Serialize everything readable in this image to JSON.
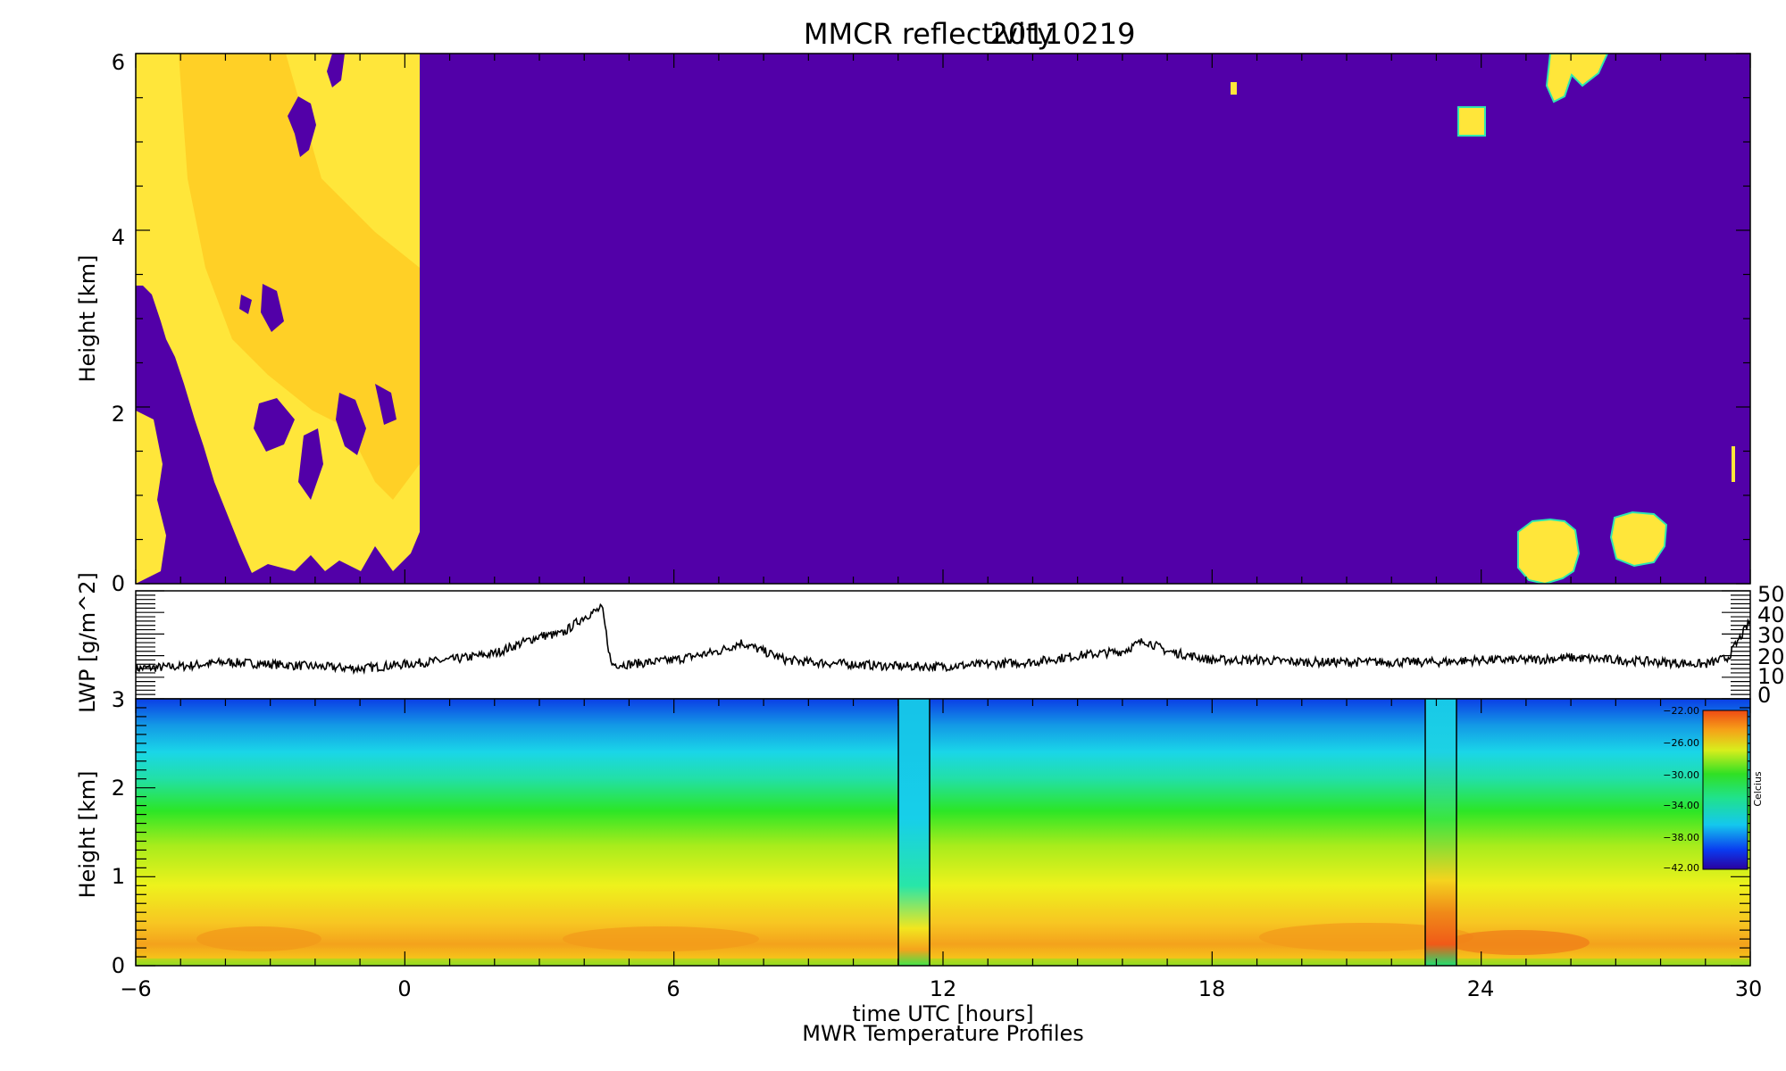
{
  "chart_data": [
    {
      "type": "heatmap",
      "title": "MMCR reflectivity",
      "date": "20110219",
      "ylabel": "Height [km]",
      "xlim": [
        -6,
        30
      ],
      "ylim": [
        0,
        6
      ],
      "yticks": [
        "0",
        "2",
        "4",
        "6"
      ],
      "colors": {
        "background": "#5200a8",
        "echo": "#ffe83a",
        "echo_core": "#ffc21e",
        "edge": "#2ee6b0"
      },
      "echo_regions_hours_km": [
        {
          "x0": -6.0,
          "x1": 0.4,
          "y0": 0.0,
          "y1": 6.0
        },
        {
          "x0": 23.4,
          "x1": 24.0,
          "y0": 5.1,
          "y1": 5.4
        },
        {
          "x0": 19.3,
          "x1": 19.4,
          "y0": 5.6,
          "y1": 5.7
        },
        {
          "x0": 24.7,
          "x1": 26.0,
          "y0": 0.0,
          "y1": 0.7
        },
        {
          "x0": 26.8,
          "x1": 28.0,
          "y0": 0.4,
          "y1": 0.8
        },
        {
          "x0": 26.0,
          "x1": 27.3,
          "y0": 5.6,
          "y1": 6.0
        },
        {
          "x0": 29.8,
          "x1": 29.9,
          "y0": 1.2,
          "y1": 1.6
        }
      ]
    },
    {
      "type": "line",
      "ylabel": "LWP [g/m^2]",
      "xlim": [
        -6,
        30
      ],
      "ylim": [
        0,
        50
      ],
      "yticks": [
        "0",
        "10",
        "20",
        "30",
        "40",
        "50"
      ],
      "series": [
        {
          "x": [
            -6,
            -5,
            -4,
            -3,
            -2,
            -1,
            0,
            1,
            2,
            3,
            3.5,
            4.0,
            4.4,
            4.6,
            5,
            6,
            7,
            7.5,
            8,
            8.5,
            9,
            10,
            11,
            12,
            13,
            14,
            15,
            16,
            16.5,
            17,
            18,
            19,
            20,
            21,
            22,
            23,
            24,
            25,
            26,
            27,
            28,
            29,
            29.5,
            30
          ],
          "y": [
            14,
            15,
            17,
            16,
            15,
            14,
            16,
            18,
            21,
            29,
            30,
            38,
            42,
            16,
            16,
            18,
            22,
            26,
            22,
            18,
            17,
            16,
            15,
            15,
            16,
            17,
            20,
            22,
            27,
            22,
            18,
            18,
            17,
            17,
            17,
            17,
            18,
            18,
            19,
            18,
            17,
            16,
            19,
            36
          ]
        }
      ]
    },
    {
      "type": "heatmap",
      "ylabel": "Height [km]",
      "xlabel": "time UTC [hours]",
      "subtitle": "MWR Temperature Profiles",
      "xlim": [
        -6,
        30
      ],
      "ylim": [
        0,
        3
      ],
      "xticks": [
        "-6",
        "0",
        "6",
        "12",
        "18",
        "24",
        "30"
      ],
      "yticks": [
        "0",
        "1",
        "2",
        "3"
      ],
      "gap_columns_hours": [
        [
          11.0,
          11.7
        ],
        [
          22.7,
          23.4
        ]
      ],
      "colorbar": {
        "label": "Celcius",
        "ticks": [
          "-22.00",
          "-26.00",
          "-30.00",
          "-34.00",
          "-38.00",
          "-42.00"
        ],
        "range": [
          -42,
          -22
        ]
      },
      "profile_celsius": {
        "heights_km": [
          0.0,
          0.1,
          0.25,
          0.5,
          1.0,
          1.5,
          2.0,
          2.5,
          3.0
        ],
        "temps": [
          -29,
          -24,
          -23,
          -25,
          -28,
          -31,
          -34,
          -38,
          -41
        ]
      }
    }
  ]
}
